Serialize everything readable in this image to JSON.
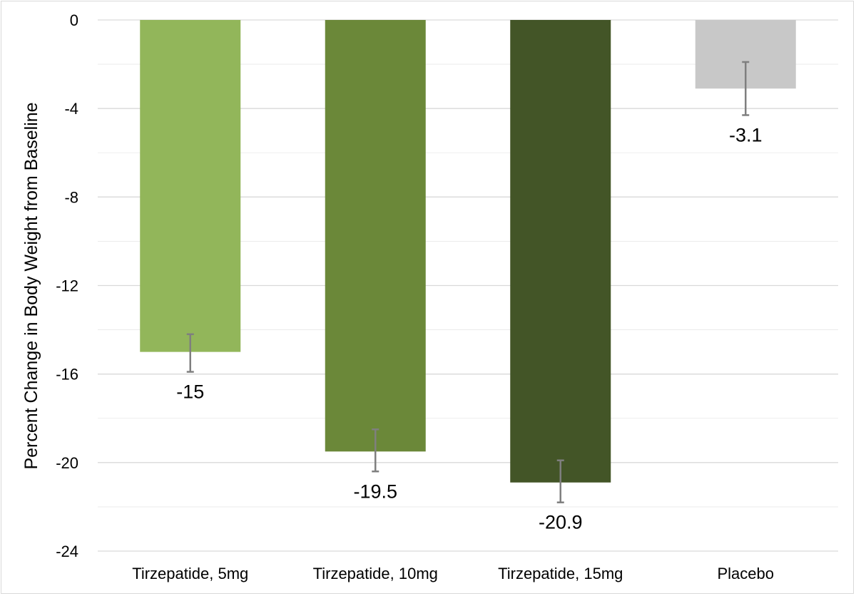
{
  "chart_data": {
    "type": "bar",
    "title": "",
    "xlabel": "",
    "ylabel": "Percent Change in Body Weight from Baseline",
    "ylim": [
      -24,
      0
    ],
    "yticks": [
      0,
      -4,
      -8,
      -12,
      -16,
      -20,
      -24
    ],
    "minor_gridlines": true,
    "grid": true,
    "legend": "none",
    "categories": [
      "Tirzepatide, 5mg",
      "Tirzepatide, 10mg",
      "Tirzepatide, 15mg",
      "Placebo"
    ],
    "values": [
      -15,
      -19.5,
      -20.9,
      -3.1
    ],
    "data_labels": [
      "-15",
      "-19.5",
      "-20.9",
      "-3.1"
    ],
    "error_bars": [
      {
        "low": -15.9,
        "high": -14.2
      },
      {
        "low": -20.4,
        "high": -18.5
      },
      {
        "low": -21.8,
        "high": -19.9
      },
      {
        "low": -4.3,
        "high": -1.9
      }
    ],
    "colors": [
      "#92b65a",
      "#6b8839",
      "#435527",
      "#c8c8c8"
    ],
    "error_bar_color": "#7f7f7f",
    "gridline_color": "#d9d9d9"
  }
}
